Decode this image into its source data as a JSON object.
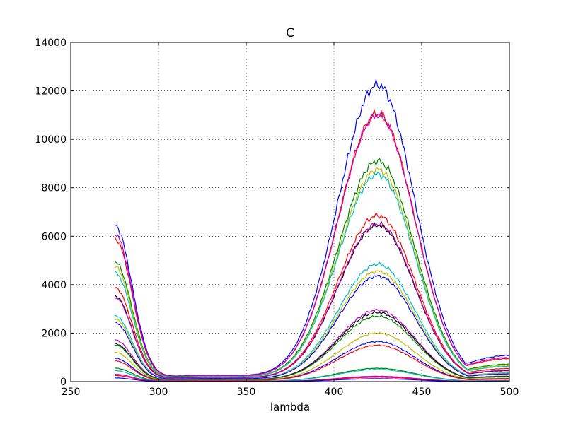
{
  "chart_data": {
    "type": "line",
    "title": "C",
    "xlabel": "lambda",
    "ylabel": "",
    "xlim": [
      250,
      500
    ],
    "ylim": [
      0,
      14000
    ],
    "xticks": [
      250,
      300,
      350,
      400,
      450,
      500
    ],
    "yticks": [
      0,
      2000,
      4000,
      6000,
      8000,
      10000,
      12000,
      14000
    ],
    "grid": true,
    "x_start": 275,
    "x_end": 500,
    "series": [
      {
        "color": "#0000ff",
        "start": 6400,
        "peak": 12250,
        "end": 1200,
        "valley": 300
      },
      {
        "color": "#ff0000",
        "start": 5850,
        "peak": 11050,
        "end": 1050,
        "valley": 280
      },
      {
        "color": "#bf00bf",
        "start": 6050,
        "peak": 11000,
        "end": 1100,
        "valley": 290
      },
      {
        "color": "#008000",
        "start": 4900,
        "peak": 9100,
        "end": 800,
        "valley": 250
      },
      {
        "color": "#bfbf00",
        "start": 4700,
        "peak": 8750,
        "end": 750,
        "valley": 240
      },
      {
        "color": "#00bfbf",
        "start": 4450,
        "peak": 8550,
        "end": 700,
        "valley": 235
      },
      {
        "color": "#ff0000",
        "start": 3850,
        "peak": 6850,
        "end": 600,
        "valley": 200
      },
      {
        "color": "#000000",
        "start": 3500,
        "peak": 6450,
        "end": 500,
        "valley": 190
      },
      {
        "color": "#bf00bf",
        "start": 3450,
        "peak": 6500,
        "end": 520,
        "valley": 190
      },
      {
        "color": "#00bfbf",
        "start": 2700,
        "peak": 4850,
        "end": 400,
        "valley": 150
      },
      {
        "color": "#bfbf00",
        "start": 2550,
        "peak": 4550,
        "end": 380,
        "valley": 145
      },
      {
        "color": "#0000ff",
        "start": 2400,
        "peak": 4350,
        "end": 350,
        "valley": 140
      },
      {
        "color": "#bf00bf",
        "start": 1700,
        "peak": 2950,
        "end": 250,
        "valley": 100
      },
      {
        "color": "#000000",
        "start": 1550,
        "peak": 2850,
        "end": 230,
        "valley": 95
      },
      {
        "color": "#008000",
        "start": 1500,
        "peak": 2700,
        "end": 220,
        "valley": 90
      },
      {
        "color": "#bfbf00",
        "start": 1200,
        "peak": 2000,
        "end": 160,
        "valley": 70
      },
      {
        "color": "#0000ff",
        "start": 950,
        "peak": 1650,
        "end": 130,
        "valley": 60
      },
      {
        "color": "#ff0000",
        "start": 850,
        "peak": 1500,
        "end": 110,
        "valley": 55
      },
      {
        "color": "#008000",
        "start": 550,
        "peak": 550,
        "end": 50,
        "valley": 30
      },
      {
        "color": "#00bfbf",
        "start": 450,
        "peak": 500,
        "end": 40,
        "valley": 25
      },
      {
        "color": "#bf00bf",
        "start": 300,
        "peak": 220,
        "end": 20,
        "valley": 15
      },
      {
        "color": "#ff0000",
        "start": 250,
        "peak": 180,
        "end": 15,
        "valley": 12
      },
      {
        "color": "#0000ff",
        "start": 150,
        "peak": 120,
        "end": 10,
        "valley": 8
      }
    ]
  }
}
